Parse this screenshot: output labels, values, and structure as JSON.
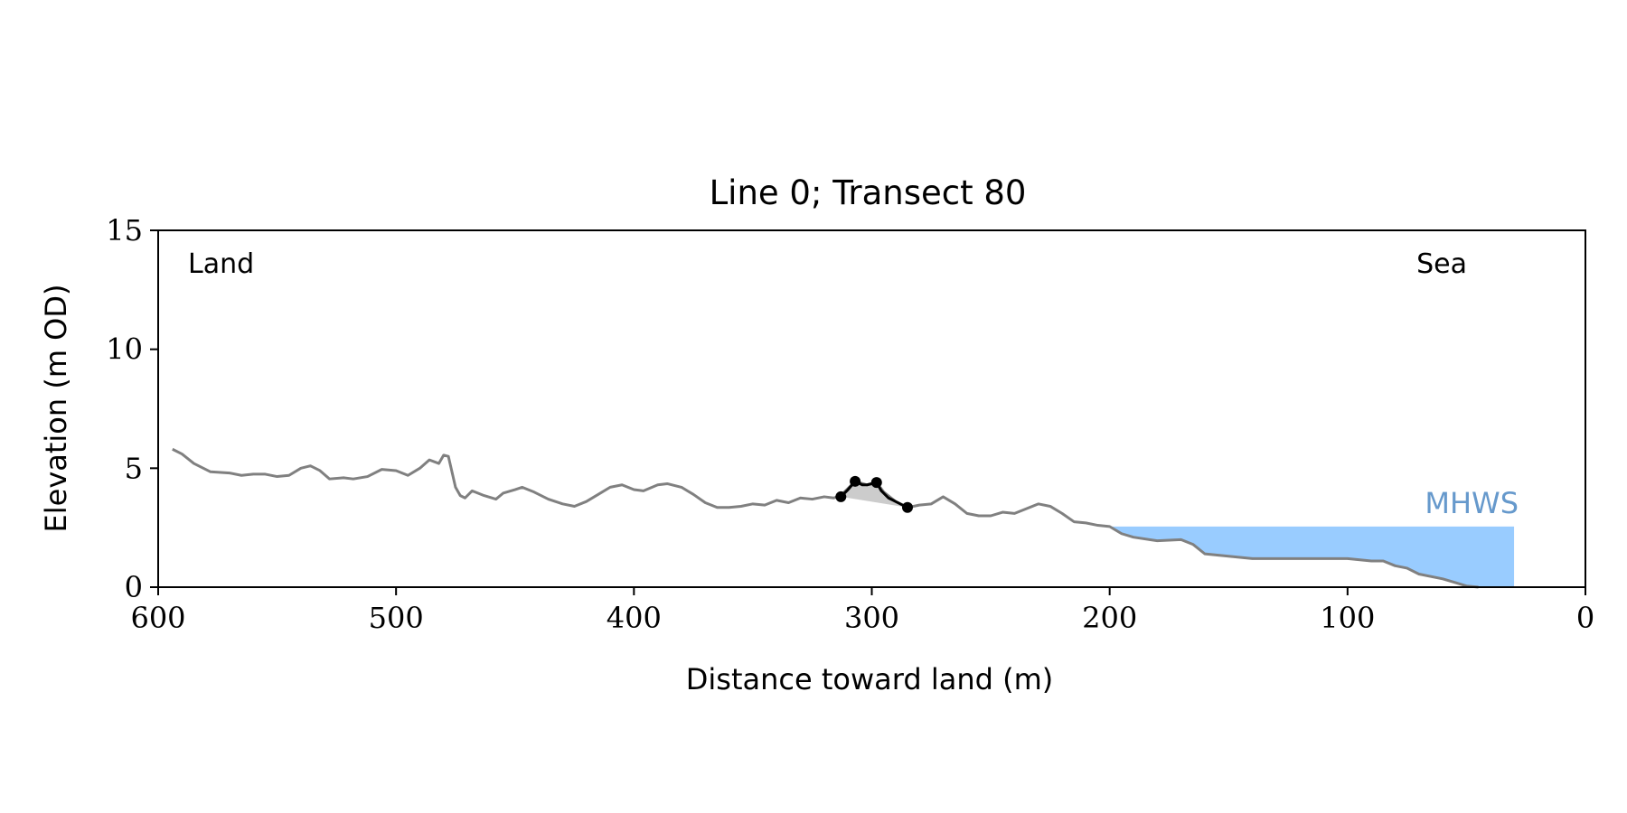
{
  "chart_data": {
    "type": "line",
    "title": "Line 0; Transect 80",
    "xlabel": "Distance toward land (m)",
    "ylabel": "Elevation (m OD)",
    "xlim": [
      600,
      0
    ],
    "ylim": [
      0,
      15
    ],
    "xticks": [
      "600",
      "500",
      "400",
      "300",
      "200",
      "100",
      "0"
    ],
    "xtick_values": [
      600,
      500,
      400,
      300,
      200,
      100,
      0
    ],
    "yticks": [
      "0",
      "5",
      "10",
      "15"
    ],
    "ytick_values": [
      0,
      5,
      10,
      15
    ],
    "grid": false,
    "annotations": {
      "land": "Land",
      "sea": "Sea",
      "mhws_label": "MHWS"
    },
    "mhws": {
      "elevation": 2.55,
      "x_start": 200,
      "x_end": 30
    },
    "colors": {
      "profile": "#808080",
      "dune": "#000000",
      "dune_fill": "#cccccc",
      "mhws_fill": "#99ccff",
      "mhws_text": "#6699cc"
    },
    "profile": {
      "name": "Profile",
      "x": [
        594,
        590,
        585,
        578,
        570,
        565,
        560,
        555,
        550,
        545,
        540,
        536,
        532,
        528,
        522,
        518,
        512,
        506,
        500,
        495,
        490,
        486,
        482,
        480,
        478,
        475,
        473,
        471,
        468,
        463,
        458,
        455,
        450,
        447,
        442,
        436,
        430,
        425,
        420,
        415,
        410,
        405,
        400,
        396,
        390,
        386,
        380,
        375,
        370,
        365,
        360,
        355,
        350,
        345,
        340,
        335,
        330,
        325,
        320,
        316,
        313,
        307,
        302,
        298,
        295,
        290,
        285,
        280,
        275,
        270,
        265,
        260,
        255,
        250,
        245,
        240,
        235,
        230,
        225,
        220,
        215,
        210,
        205,
        200,
        195,
        190,
        180,
        170,
        165,
        160,
        150,
        140,
        130,
        120,
        110,
        100,
        90,
        85,
        80,
        75,
        70,
        60,
        55,
        50,
        45
      ],
      "y": [
        5.8,
        5.6,
        5.2,
        4.85,
        4.8,
        4.7,
        4.75,
        4.75,
        4.65,
        4.7,
        5.0,
        5.1,
        4.9,
        4.55,
        4.6,
        4.55,
        4.65,
        4.95,
        4.9,
        4.7,
        5.0,
        5.35,
        5.2,
        5.55,
        5.5,
        4.2,
        3.85,
        3.75,
        4.05,
        3.85,
        3.7,
        3.95,
        4.1,
        4.2,
        4.0,
        3.7,
        3.5,
        3.4,
        3.6,
        3.9,
        4.2,
        4.3,
        4.1,
        4.05,
        4.3,
        4.35,
        4.2,
        3.9,
        3.55,
        3.35,
        3.35,
        3.4,
        3.5,
        3.45,
        3.65,
        3.55,
        3.75,
        3.7,
        3.8,
        3.75,
        3.85,
        4.45,
        4.3,
        4.4,
        4.0,
        3.6,
        3.35,
        3.45,
        3.5,
        3.8,
        3.5,
        3.1,
        3.0,
        3.0,
        3.15,
        3.1,
        3.3,
        3.5,
        3.4,
        3.1,
        2.75,
        2.7,
        2.6,
        2.55,
        2.25,
        2.1,
        1.95,
        2.0,
        1.8,
        1.4,
        1.3,
        1.2,
        1.2,
        1.2,
        1.2,
        1.2,
        1.1,
        1.1,
        0.9,
        0.8,
        0.55,
        0.35,
        0.2,
        0.05,
        0.0
      ]
    },
    "dune": {
      "name": "Dune",
      "x": [
        313,
        310,
        307,
        304,
        302,
        298,
        296,
        293,
        290,
        285
      ],
      "y": [
        3.8,
        4.1,
        4.45,
        4.3,
        4.3,
        4.4,
        4.05,
        3.75,
        3.6,
        3.35
      ],
      "markers_x": [
        313,
        307,
        298,
        285
      ],
      "markers_y": [
        3.8,
        4.45,
        4.4,
        3.35
      ]
    }
  }
}
